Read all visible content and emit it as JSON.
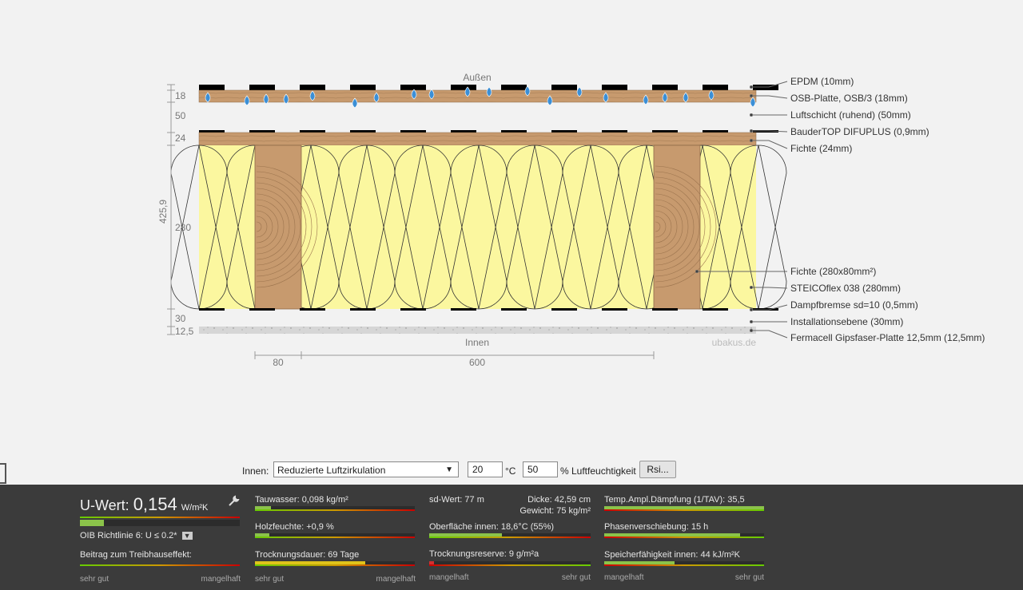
{
  "diagram": {
    "label_outside": "Außen",
    "label_inside": "Innen",
    "watermark": "ubakus.de",
    "total_thickness": "425,9",
    "left_dims": [
      "18",
      "50",
      "24",
      "280",
      "30",
      "12,5"
    ],
    "bottom_dims": [
      "80",
      "600"
    ],
    "layers": [
      "EPDM (10mm)",
      "OSB-Platte, OSB/3 (18mm)",
      "Luftschicht (ruhend) (50mm)",
      "BauderTOP DIFUPLUS (0,9mm)",
      "Fichte (24mm)",
      "Fichte (280x80mm²)",
      "STEICOflex 038 (280mm)",
      "Dampfbremse sd=10 (0,5mm)",
      "Installationsebene (30mm)",
      "Fermacell Gipsfaser-Platte 12,5mm (12,5mm)"
    ],
    "colors": {
      "wood": "#c79a6e",
      "insulation": "#fbf79f",
      "water": "#3b8fd6",
      "membrane": "#000000"
    }
  },
  "settings": {
    "innen_label": "Innen:",
    "circulation": "Reduzierte Luftzirkulation",
    "temperature": "20",
    "temp_unit": "°C",
    "humidity": "50",
    "humidity_unit": "% Luftfeuchtigkeit",
    "rsi_button": "Rsi..."
  },
  "panel": {
    "u_label": "U-Wert:",
    "u_value": "0,154",
    "u_unit": "W/m²K",
    "u_fill": 0.15,
    "oib": "OIB Richtlinie 6: U ≤ 0.2*",
    "treibhaus": "Beitrag zum Treibhauseffekt:",
    "scale_good": "sehr gut",
    "scale_bad": "mangelhaft",
    "tauwasser": "Tauwasser: 0,098 kg/m²",
    "tauwasser_fill": 0.1,
    "holzfeuchte": "Holzfeuchte: +0,9 %",
    "holzfeuchte_fill": 0.09,
    "trocknungsdauer": "Trocknungsdauer: 69 Tage",
    "trocknungsdauer_fill": 0.69,
    "sd_wert": "sd-Wert: 77 m",
    "dicke": "Dicke: 42,59 cm",
    "gewicht": "Gewicht: 75 kg/m²",
    "oberflaeche": "Oberfläche innen: 18,6°C (55%)",
    "oberflaeche_fill": 0.45,
    "trocknungsreserve": "Trocknungsreserve: 9 g/m²a",
    "trocknungsreserve_fill": 0.03,
    "temp_amp": "Temp.Ampl.Dämpfung (1/TAV): 35,5",
    "temp_amp_fill": 1.0,
    "phasen": "Phasenverschiebung: 15 h",
    "phasen_fill": 0.85,
    "speicher": "Speicherfähigkeit innen: 44 kJ/m²K",
    "speicher_fill": 0.44
  }
}
